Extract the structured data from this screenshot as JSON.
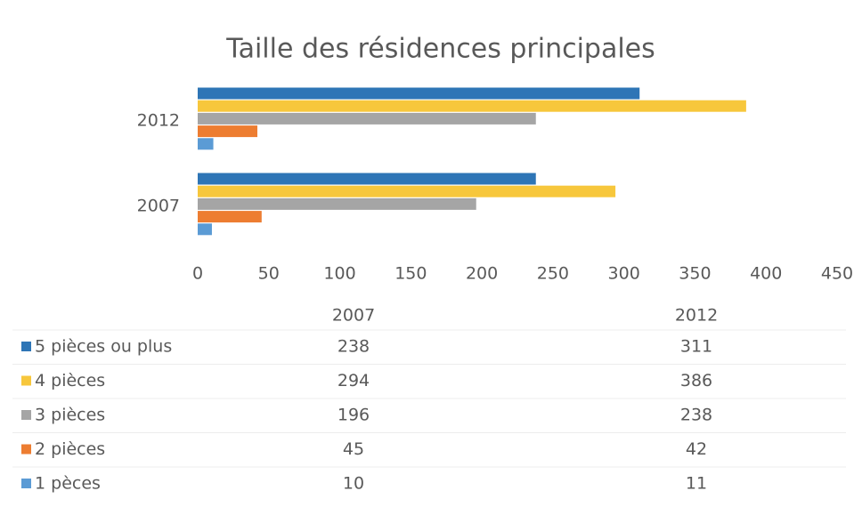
{
  "chart_data": {
    "type": "bar",
    "orientation": "horizontal",
    "title": "Taille des résidences principales",
    "categories": [
      "2007",
      "2012"
    ],
    "series": [
      {
        "name": "5 pièces ou plus",
        "color": "#2e75b6",
        "values": [
          238,
          311
        ]
      },
      {
        "name": "4 pièces",
        "color": "#f7c73c",
        "values": [
          294,
          386
        ]
      },
      {
        "name": "3 pièces",
        "color": "#a5a5a5",
        "values": [
          196,
          238
        ]
      },
      {
        "name": "2 pièces",
        "color": "#ed7d31",
        "values": [
          45,
          42
        ]
      },
      {
        "name": "1 pèces",
        "color": "#5b9bd5",
        "values": [
          10,
          11
        ]
      }
    ],
    "xlim": [
      0,
      450
    ],
    "xticks": [
      0,
      50,
      100,
      150,
      200,
      250,
      300,
      350,
      400,
      450
    ],
    "grid": false,
    "data_table": true
  }
}
